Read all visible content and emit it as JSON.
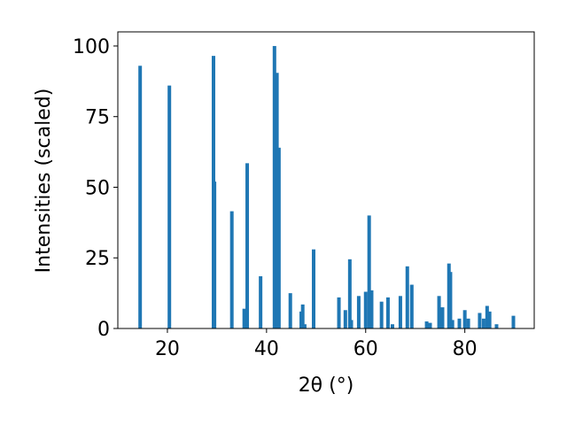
{
  "chart_data": {
    "type": "bar",
    "xlabel": "2θ (°)",
    "ylabel": "Intensities (scaled)",
    "x": [
      14.5,
      20.4,
      29.3,
      29.5,
      33.0,
      35.5,
      36.1,
      38.8,
      41.6,
      42.1,
      42.5,
      44.8,
      47.0,
      47.3,
      47.7,
      49.5,
      54.6,
      55.9,
      56.8,
      57.1,
      58.6,
      60.0,
      60.7,
      61.2,
      63.2,
      64.5,
      65.4,
      67.0,
      68.4,
      69.3,
      72.3,
      73.0,
      74.8,
      75.5,
      76.8,
      77.1,
      77.5,
      78.9,
      80.0,
      80.7,
      83.0,
      83.8,
      84.5,
      85.0,
      86.4,
      89.8
    ],
    "values": [
      93,
      86,
      96.5,
      52,
      41.5,
      7,
      58.5,
      18.5,
      100,
      90.5,
      64,
      12.5,
      6,
      8.5,
      1.5,
      28,
      11,
      6.5,
      24.5,
      3,
      11.5,
      13,
      40,
      13.5,
      9.5,
      11,
      1.5,
      11.5,
      22,
      15.5,
      2.5,
      2,
      11.5,
      7.5,
      23,
      20,
      3,
      3.5,
      6.5,
      3.5,
      5.5,
      3.5,
      8,
      6,
      1.5,
      4.5
    ],
    "color": "#1f77b4",
    "xlim": [
      10,
      94
    ],
    "ylim": [
      0,
      105
    ],
    "xticks": [
      20,
      40,
      60,
      80
    ],
    "yticks": [
      0,
      25,
      50,
      75,
      100
    ]
  }
}
